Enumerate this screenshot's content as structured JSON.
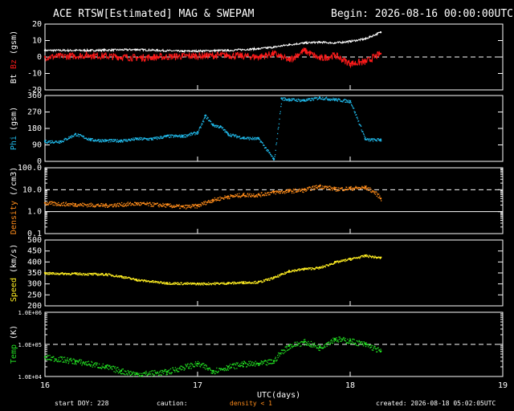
{
  "header": {
    "title": "ACE RTSW[Estimated] MAG & SWEPAM",
    "begin": "Begin: 2026-08-16 00:00:00UTC"
  },
  "footer": {
    "start_doy": "start DOY: 228",
    "caution": "caution:",
    "density_note": "density < 1",
    "created": "created: 2026-08-18 05:02:05UTC"
  },
  "colors": {
    "bt": "#ffffff",
    "bz": "#ff1a1a",
    "phi": "#20b8e8",
    "density": "#ff8c1a",
    "speed": "#ffee22",
    "temp": "#22dd22"
  },
  "chart_data": [
    {
      "type": "line",
      "panel": "magnetic field",
      "ylabel_parts": [
        {
          "text": "Bt",
          "color": "#ffffff"
        },
        {
          "text": "Bz",
          "color": "#ff1a1a"
        },
        {
          "text": "(gsm)",
          "color": "#ffffff"
        }
      ],
      "yscale": "linear",
      "ylim": [
        -20,
        20
      ],
      "yticks": [
        "-20",
        "-10",
        "0",
        "10",
        "20"
      ],
      "ytick_values": [
        -20,
        -10,
        0,
        10,
        20
      ],
      "dashed_lines": [
        0
      ],
      "series": [
        {
          "key": "Bt",
          "color": "#ffffff",
          "x": [
            0,
            0.3,
            0.6,
            0.9,
            1.2,
            1.4,
            1.5,
            1.6,
            1.7,
            1.8,
            1.9,
            2.0,
            2.1,
            2.2
          ],
          "y": [
            4,
            4,
            4.5,
            3.5,
            4,
            5,
            6,
            7.5,
            8.5,
            9,
            8.5,
            9.5,
            11,
            15
          ]
        },
        {
          "key": "Bz",
          "color": "#ff1a1a",
          "x": [
            0,
            0.3,
            0.6,
            0.9,
            1.2,
            1.4,
            1.5,
            1.6,
            1.7,
            1.8,
            1.9,
            2.0,
            2.1,
            2.2
          ],
          "y": [
            0,
            1,
            -0.5,
            0.5,
            1,
            0,
            2,
            -2,
            4,
            -1,
            1,
            -4,
            -3,
            2
          ]
        }
      ]
    },
    {
      "type": "scatter",
      "panel": "phi",
      "ylabel_parts": [
        {
          "text": "Phi",
          "color": "#20b8e8"
        },
        {
          "text": "(gsm)",
          "color": "#ffffff"
        }
      ],
      "yscale": "linear",
      "ylim": [
        0,
        360
      ],
      "yticks": [
        "0",
        "90",
        "180",
        "270",
        "360"
      ],
      "ytick_values": [
        0,
        90,
        180,
        270,
        360
      ],
      "dashed_lines": [],
      "series": [
        {
          "key": "Phi",
          "color": "#20b8e8",
          "x": [
            0,
            0.1,
            0.2,
            0.3,
            0.4,
            0.5,
            0.6,
            0.7,
            0.8,
            0.9,
            1.0,
            1.05,
            1.1,
            1.15,
            1.2,
            1.3,
            1.4,
            1.5,
            1.55,
            1.6,
            1.7,
            1.8,
            1.9,
            2.0,
            2.1,
            2.2
          ],
          "y": [
            110,
            110,
            150,
            120,
            115,
            115,
            125,
            125,
            140,
            140,
            160,
            250,
            200,
            190,
            150,
            130,
            125,
            10,
            345,
            340,
            335,
            350,
            340,
            330,
            120,
            120
          ]
        }
      ]
    },
    {
      "type": "scatter",
      "panel": "density",
      "ylabel_parts": [
        {
          "text": "Density",
          "color": "#ff8c1a"
        },
        {
          "text": "(/cm3)",
          "color": "#ffffff"
        }
      ],
      "yscale": "log",
      "ylim": [
        0.1,
        100
      ],
      "yticks": [
        "0.1",
        "1.0",
        "10.0",
        "100.0"
      ],
      "ytick_values": [
        0.1,
        1,
        10,
        100
      ],
      "dashed_lines": [
        10
      ],
      "solid_lines": [
        1
      ],
      "series": [
        {
          "key": "Density",
          "color": "#ff8c1a",
          "x": [
            0,
            0.2,
            0.4,
            0.6,
            0.8,
            0.9,
            1.0,
            1.1,
            1.2,
            1.3,
            1.4,
            1.5,
            1.6,
            1.7,
            1.8,
            1.9,
            2.0,
            2.1,
            2.2
          ],
          "y": [
            2.5,
            2.2,
            2.0,
            2.4,
            2.0,
            1.7,
            1.9,
            3.5,
            5.0,
            6.0,
            6.0,
            8.0,
            9.0,
            10.0,
            15.0,
            11.0,
            12.0,
            13.0,
            4.0
          ]
        }
      ]
    },
    {
      "type": "scatter",
      "panel": "speed",
      "ylabel_parts": [
        {
          "text": "Speed",
          "color": "#ffee22"
        },
        {
          "text": "(km/s)",
          "color": "#ffffff"
        }
      ],
      "yscale": "linear",
      "ylim": [
        200,
        500
      ],
      "yticks": [
        "200",
        "250",
        "300",
        "350",
        "400",
        "450",
        "500"
      ],
      "ytick_values": [
        200,
        250,
        300,
        350,
        400,
        450,
        500
      ],
      "dashed_lines": [],
      "series": [
        {
          "key": "Speed",
          "color": "#ffee22",
          "x": [
            0,
            0.2,
            0.4,
            0.5,
            0.6,
            0.8,
            1.0,
            1.2,
            1.3,
            1.4,
            1.5,
            1.6,
            1.7,
            1.8,
            1.9,
            2.0,
            2.1,
            2.2
          ],
          "y": [
            350,
            348,
            345,
            335,
            320,
            305,
            302,
            305,
            308,
            310,
            330,
            360,
            370,
            375,
            400,
            415,
            430,
            420
          ]
        }
      ]
    },
    {
      "type": "scatter",
      "panel": "temperature",
      "ylabel_parts": [
        {
          "text": "Temp",
          "color": "#22dd22"
        },
        {
          "text": "(K)",
          "color": "#ffffff"
        }
      ],
      "yscale": "log",
      "ylim": [
        10000,
        1000000
      ],
      "yticks": [
        "1.0E+04",
        "1.0E+05",
        "1.0E+06"
      ],
      "ytick_values": [
        10000,
        100000,
        1000000
      ],
      "dashed_lines": [
        100000
      ],
      "series": [
        {
          "key": "Temp",
          "color": "#22dd22",
          "x": [
            0,
            0.2,
            0.4,
            0.5,
            0.6,
            0.8,
            1.0,
            1.1,
            1.2,
            1.3,
            1.4,
            1.5,
            1.6,
            1.7,
            1.8,
            1.9,
            2.0,
            2.1,
            2.2
          ],
          "y": [
            40000,
            30000,
            20000,
            15000,
            12000,
            14000,
            25000,
            15000,
            20000,
            25000,
            25000,
            30000,
            90000,
            120000,
            80000,
            150000,
            130000,
            100000,
            60000
          ]
        }
      ]
    }
  ],
  "xaxis": {
    "label": "UTC(days)",
    "xlim": [
      0,
      3
    ],
    "tick_values": [
      0,
      1,
      2,
      3
    ],
    "ticks": [
      "16",
      "17",
      "18",
      "19"
    ]
  }
}
